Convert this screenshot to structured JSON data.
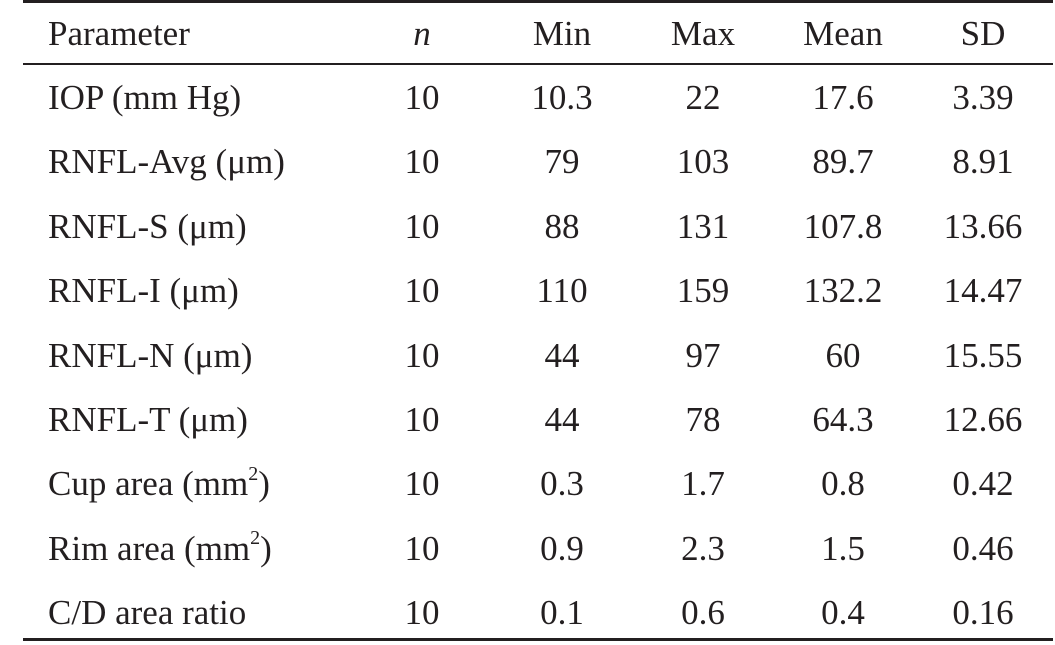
{
  "table": {
    "headers": [
      "Parameter",
      "n",
      "Min",
      "Max",
      "Mean",
      "SD"
    ],
    "rows": [
      {
        "parameter": "IOP (mm Hg)",
        "sup": "",
        "closing": "",
        "n": "10",
        "min": "10.3",
        "max": "22",
        "mean": "17.6",
        "sd": "3.39"
      },
      {
        "parameter": "RNFL-Avg (μm)",
        "sup": "",
        "closing": "",
        "n": "10",
        "min": "79",
        "max": "103",
        "mean": "89.7",
        "sd": "8.91"
      },
      {
        "parameter": "RNFL-S (μm)",
        "sup": "",
        "closing": "",
        "n": "10",
        "min": "88",
        "max": "131",
        "mean": "107.8",
        "sd": "13.66"
      },
      {
        "parameter": "RNFL-I (μm)",
        "sup": "",
        "closing": "",
        "n": "10",
        "min": "110",
        "max": "159",
        "mean": "132.2",
        "sd": "14.47"
      },
      {
        "parameter": "RNFL-N (μm)",
        "sup": "",
        "closing": "",
        "n": "10",
        "min": "44",
        "max": "97",
        "mean": "60",
        "sd": "15.55"
      },
      {
        "parameter": "RNFL-T (μm)",
        "sup": "",
        "closing": "",
        "n": "10",
        "min": "44",
        "max": "78",
        "mean": "64.3",
        "sd": "12.66"
      },
      {
        "parameter": "Cup area (mm",
        "sup": "2",
        "closing": ")",
        "n": "10",
        "min": "0.3",
        "max": "1.7",
        "mean": "0.8",
        "sd": "0.42"
      },
      {
        "parameter": "Rim area (mm",
        "sup": "2",
        "closing": ")",
        "n": "10",
        "min": "0.9",
        "max": "2.3",
        "mean": "1.5",
        "sd": "0.46"
      },
      {
        "parameter": "C/D area ratio",
        "sup": "",
        "closing": "",
        "n": "10",
        "min": "0.1",
        "max": "0.6",
        "mean": "0.4",
        "sd": "0.16"
      }
    ]
  }
}
